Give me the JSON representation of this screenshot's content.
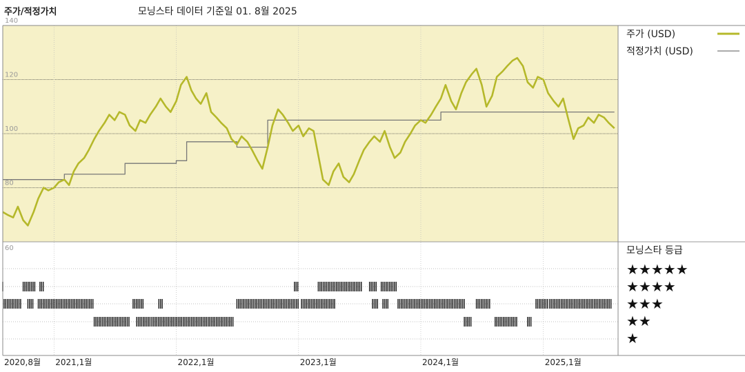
{
  "header": {
    "title": "주가/적정가치",
    "subtitle": "모닝스타 데이터 기준일 01. 8월 2025"
  },
  "colors": {
    "price_line": "#b5b82a",
    "fair_value_line": "#777777",
    "plot_bg": "#f6f1c8",
    "rating_bar": "#222222"
  },
  "chart_data": {
    "type": "line",
    "title": "",
    "ylim": [
      60,
      140
    ],
    "y_ticks": [
      140,
      120,
      100,
      80,
      60
    ],
    "x_ticks": [
      "2020,8월",
      "2021,1월",
      "2022,1월",
      "2023,1월",
      "2024,1월",
      "2025,1월"
    ],
    "series": [
      {
        "name": "주가 (USD)",
        "style": "line-thick",
        "points": [
          [
            "2020-08-01",
            71
          ],
          [
            "2020-08-15",
            70
          ],
          [
            "2020-09-01",
            69
          ],
          [
            "2020-09-15",
            73
          ],
          [
            "2020-10-01",
            68
          ],
          [
            "2020-10-15",
            66
          ],
          [
            "2020-11-01",
            71
          ],
          [
            "2020-11-15",
            76
          ],
          [
            "2020-12-01",
            80
          ],
          [
            "2020-12-15",
            79
          ],
          [
            "2021-01-01",
            80
          ],
          [
            "2021-01-15",
            82
          ],
          [
            "2021-02-01",
            83
          ],
          [
            "2021-02-15",
            81
          ],
          [
            "2021-03-01",
            86
          ],
          [
            "2021-03-15",
            89
          ],
          [
            "2021-04-01",
            91
          ],
          [
            "2021-04-15",
            94
          ],
          [
            "2021-05-01",
            98
          ],
          [
            "2021-05-15",
            101
          ],
          [
            "2021-06-01",
            104
          ],
          [
            "2021-06-15",
            107
          ],
          [
            "2021-07-01",
            105
          ],
          [
            "2021-07-15",
            108
          ],
          [
            "2021-08-01",
            107
          ],
          [
            "2021-08-15",
            103
          ],
          [
            "2021-09-01",
            101
          ],
          [
            "2021-09-15",
            105
          ],
          [
            "2021-10-01",
            104
          ],
          [
            "2021-10-15",
            107
          ],
          [
            "2021-11-01",
            110
          ],
          [
            "2021-11-15",
            113
          ],
          [
            "2021-12-01",
            110
          ],
          [
            "2021-12-15",
            108
          ],
          [
            "2022-01-01",
            112
          ],
          [
            "2022-01-15",
            118
          ],
          [
            "2022-02-01",
            121
          ],
          [
            "2022-02-15",
            116
          ],
          [
            "2022-03-01",
            113
          ],
          [
            "2022-03-15",
            111
          ],
          [
            "2022-04-01",
            115
          ],
          [
            "2022-04-15",
            108
          ],
          [
            "2022-05-01",
            106
          ],
          [
            "2022-05-15",
            104
          ],
          [
            "2022-06-01",
            102
          ],
          [
            "2022-06-15",
            98
          ],
          [
            "2022-07-01",
            96
          ],
          [
            "2022-07-15",
            99
          ],
          [
            "2022-08-01",
            97
          ],
          [
            "2022-08-15",
            94
          ],
          [
            "2022-09-01",
            90
          ],
          [
            "2022-09-15",
            87
          ],
          [
            "2022-10-01",
            95
          ],
          [
            "2022-10-15",
            103
          ],
          [
            "2022-11-01",
            109
          ],
          [
            "2022-11-15",
            107
          ],
          [
            "2022-12-01",
            104
          ],
          [
            "2022-12-15",
            101
          ],
          [
            "2023-01-01",
            103
          ],
          [
            "2023-01-15",
            99
          ],
          [
            "2023-02-01",
            102
          ],
          [
            "2023-02-15",
            101
          ],
          [
            "2023-03-01",
            92
          ],
          [
            "2023-03-15",
            83
          ],
          [
            "2023-04-01",
            81
          ],
          [
            "2023-04-15",
            86
          ],
          [
            "2023-05-01",
            89
          ],
          [
            "2023-05-15",
            84
          ],
          [
            "2023-06-01",
            82
          ],
          [
            "2023-06-15",
            85
          ],
          [
            "2023-07-01",
            90
          ],
          [
            "2023-07-15",
            94
          ],
          [
            "2023-08-01",
            97
          ],
          [
            "2023-08-15",
            99
          ],
          [
            "2023-09-01",
            97
          ],
          [
            "2023-09-15",
            101
          ],
          [
            "2023-10-01",
            95
          ],
          [
            "2023-10-15",
            91
          ],
          [
            "2023-11-01",
            93
          ],
          [
            "2023-11-15",
            97
          ],
          [
            "2023-12-01",
            100
          ],
          [
            "2023-12-15",
            103
          ],
          [
            "2024-01-01",
            105
          ],
          [
            "2024-01-15",
            104
          ],
          [
            "2024-02-01",
            107
          ],
          [
            "2024-02-15",
            110
          ],
          [
            "2024-03-01",
            113
          ],
          [
            "2024-03-15",
            118
          ],
          [
            "2024-04-01",
            112
          ],
          [
            "2024-04-15",
            109
          ],
          [
            "2024-05-01",
            115
          ],
          [
            "2024-05-15",
            119
          ],
          [
            "2024-06-01",
            122
          ],
          [
            "2024-06-15",
            124
          ],
          [
            "2024-07-01",
            118
          ],
          [
            "2024-07-15",
            110
          ],
          [
            "2024-08-01",
            114
          ],
          [
            "2024-08-15",
            121
          ],
          [
            "2024-09-01",
            123
          ],
          [
            "2024-09-15",
            125
          ],
          [
            "2024-10-01",
            127
          ],
          [
            "2024-10-15",
            128
          ],
          [
            "2024-11-01",
            125
          ],
          [
            "2024-11-15",
            119
          ],
          [
            "2024-12-01",
            117
          ],
          [
            "2024-12-15",
            121
          ],
          [
            "2025-01-01",
            120
          ],
          [
            "2025-01-15",
            115
          ],
          [
            "2025-02-01",
            112
          ],
          [
            "2025-02-15",
            110
          ],
          [
            "2025-03-01",
            113
          ],
          [
            "2025-03-15",
            106
          ],
          [
            "2025-04-01",
            98
          ],
          [
            "2025-04-15",
            102
          ],
          [
            "2025-05-01",
            103
          ],
          [
            "2025-05-15",
            106
          ],
          [
            "2025-06-01",
            104
          ],
          [
            "2025-06-15",
            107
          ],
          [
            "2025-07-01",
            106
          ],
          [
            "2025-07-15",
            104
          ],
          [
            "2025-08-01",
            102
          ]
        ]
      },
      {
        "name": "적정가치 (USD)",
        "style": "step-thin",
        "points": [
          [
            "2020-08-01",
            83
          ],
          [
            "2021-02-01",
            83
          ],
          [
            "2021-02-01",
            85
          ],
          [
            "2021-08-01",
            85
          ],
          [
            "2021-08-01",
            89
          ],
          [
            "2022-01-01",
            89
          ],
          [
            "2022-01-01",
            90
          ],
          [
            "2022-02-01",
            90
          ],
          [
            "2022-02-01",
            97
          ],
          [
            "2022-07-01",
            97
          ],
          [
            "2022-07-01",
            95
          ],
          [
            "2022-10-01",
            95
          ],
          [
            "2022-10-01",
            105
          ],
          [
            "2023-12-01",
            105
          ],
          [
            "2023-12-01",
            105
          ],
          [
            "2024-03-01",
            105
          ],
          [
            "2024-03-01",
            108
          ],
          [
            "2025-08-01",
            108
          ]
        ]
      }
    ],
    "rating_legend_title": "모닝스타 등급",
    "rating_legend": [
      "★★★★★",
      "★★★★",
      "★★★",
      "★★",
      "★"
    ],
    "rating_periods": [
      {
        "stars": 4,
        "start": "2020-08-01",
        "end": "2020-08-05"
      },
      {
        "stars": 4,
        "start": "2020-10-01",
        "end": "2020-11-05"
      },
      {
        "stars": 4,
        "start": "2020-11-20",
        "end": "2020-12-01"
      },
      {
        "stars": 4,
        "start": "2022-12-20",
        "end": "2022-12-31"
      },
      {
        "stars": 4,
        "start": "2023-03-01",
        "end": "2023-07-10"
      },
      {
        "stars": 4,
        "start": "2023-08-01",
        "end": "2023-08-25"
      },
      {
        "stars": 4,
        "start": "2023-09-05",
        "end": "2023-10-20"
      },
      {
        "stars": 3,
        "start": "2020-08-05",
        "end": "2020-09-25"
      },
      {
        "stars": 3,
        "start": "2020-10-15",
        "end": "2020-10-30"
      },
      {
        "stars": 3,
        "start": "2020-11-15",
        "end": "2021-05-01"
      },
      {
        "stars": 3,
        "start": "2021-08-25",
        "end": "2021-09-25"
      },
      {
        "stars": 3,
        "start": "2021-11-10",
        "end": "2021-11-20"
      },
      {
        "stars": 3,
        "start": "2022-07-01",
        "end": "2022-12-31"
      },
      {
        "stars": 3,
        "start": "2023-01-10",
        "end": "2023-04-20"
      },
      {
        "stars": 3,
        "start": "2023-08-10",
        "end": "2023-08-25"
      },
      {
        "stars": 3,
        "start": "2023-09-10",
        "end": "2023-09-25"
      },
      {
        "stars": 3,
        "start": "2023-10-25",
        "end": "2024-05-10"
      },
      {
        "stars": 3,
        "start": "2024-06-15",
        "end": "2024-07-25"
      },
      {
        "stars": 3,
        "start": "2024-12-10",
        "end": "2025-01-15"
      },
      {
        "stars": 3,
        "start": "2025-01-20",
        "end": "2025-07-25"
      },
      {
        "stars": 2,
        "start": "2021-05-01",
        "end": "2021-08-15"
      },
      {
        "stars": 2,
        "start": "2021-09-05",
        "end": "2021-10-15"
      },
      {
        "stars": 2,
        "start": "2021-10-20",
        "end": "2022-06-20"
      },
      {
        "stars": 2,
        "start": "2024-05-10",
        "end": "2024-06-01"
      },
      {
        "stars": 2,
        "start": "2024-08-10",
        "end": "2024-10-15"
      },
      {
        "stars": 2,
        "start": "2024-11-15",
        "end": "2024-11-25"
      }
    ]
  }
}
